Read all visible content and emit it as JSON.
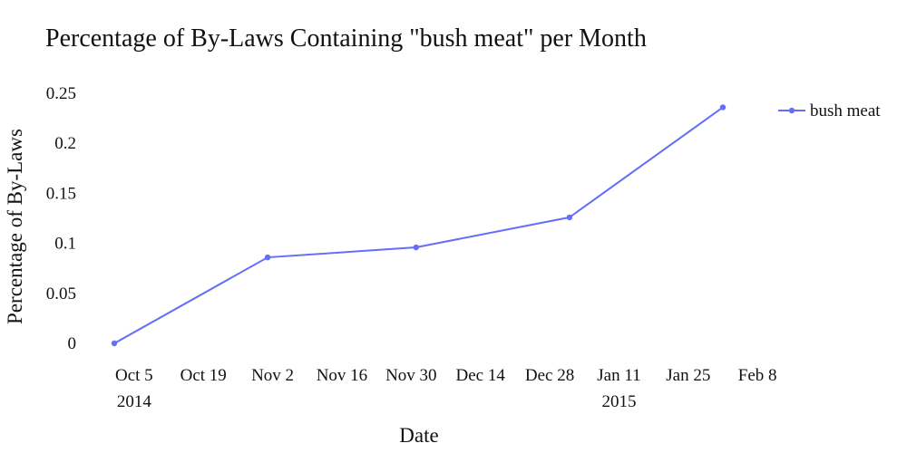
{
  "chart_data": {
    "type": "line",
    "title": "Percentage of By-Laws Containing \"bush meat\" per Month",
    "xlabel": "Date",
    "ylabel": "Percentage of By-Laws",
    "x_axis_type": "date",
    "x_range": [
      "2014-09-29",
      "2015-02-11"
    ],
    "ylim": [
      0,
      0.25
    ],
    "y_ticks": [
      0,
      0.05,
      0.1,
      0.15,
      0.2,
      0.25
    ],
    "y_tick_labels": [
      "0",
      "0.05",
      "0.1",
      "0.15",
      "0.2",
      "0.25"
    ],
    "x_ticks": [
      {
        "date": "2014-10-05",
        "label": "Oct 5",
        "sublabel": "2014"
      },
      {
        "date": "2014-10-19",
        "label": "Oct 19",
        "sublabel": ""
      },
      {
        "date": "2014-11-02",
        "label": "Nov 2",
        "sublabel": ""
      },
      {
        "date": "2014-11-16",
        "label": "Nov 16",
        "sublabel": ""
      },
      {
        "date": "2014-11-30",
        "label": "Nov 30",
        "sublabel": ""
      },
      {
        "date": "2014-12-14",
        "label": "Dec 14",
        "sublabel": ""
      },
      {
        "date": "2014-12-28",
        "label": "Dec 28",
        "sublabel": ""
      },
      {
        "date": "2015-01-11",
        "label": "Jan 11",
        "sublabel": "2015"
      },
      {
        "date": "2015-01-25",
        "label": "Jan 25",
        "sublabel": ""
      },
      {
        "date": "2015-02-08",
        "label": "Feb 8",
        "sublabel": ""
      }
    ],
    "grid": false,
    "legend_position": "top-right",
    "series": [
      {
        "name": "bush meat",
        "color": "#636efa",
        "points": [
          {
            "x": "2014-10-01",
            "y": 0.0
          },
          {
            "x": "2014-11-01",
            "y": 0.086
          },
          {
            "x": "2014-12-01",
            "y": 0.096
          },
          {
            "x": "2015-01-01",
            "y": 0.126
          },
          {
            "x": "2015-02-01",
            "y": 0.236
          }
        ]
      }
    ]
  }
}
